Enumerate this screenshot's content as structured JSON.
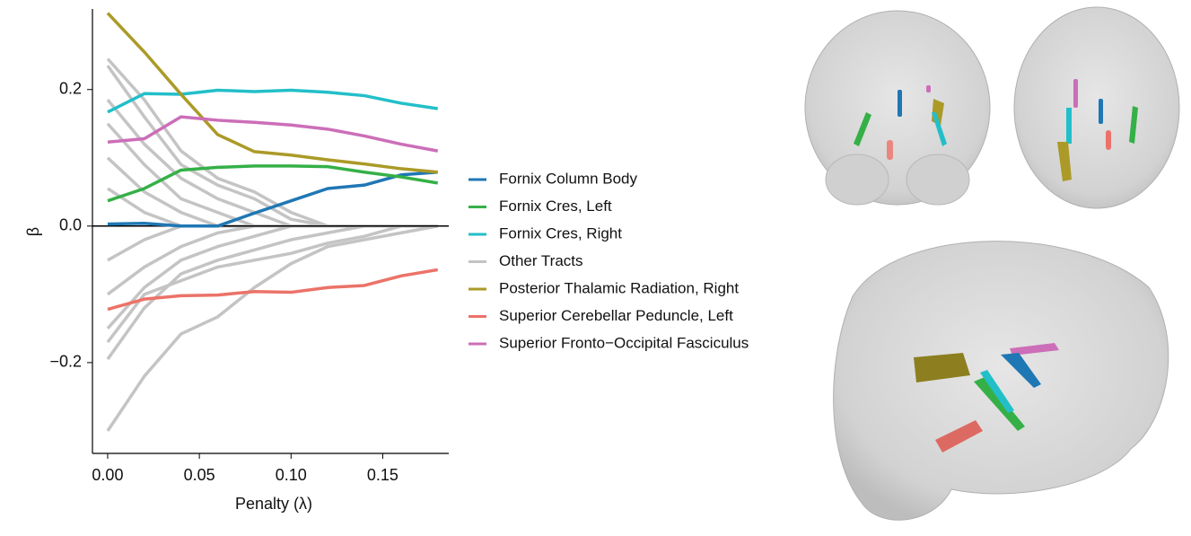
{
  "chart_data": {
    "type": "line",
    "xlabel": "Penalty (λ)",
    "ylabel": "β",
    "x": [
      0,
      0.02,
      0.04,
      0.06,
      0.08,
      0.1,
      0.12,
      0.14,
      0.16,
      0.18
    ],
    "xlim": [
      -0.0083,
      0.186
    ],
    "ylim": [
      -0.333,
      0.318
    ],
    "xticks": [
      {
        "value": 0,
        "label": "0.00"
      },
      0.05,
      {
        "value": 0.1,
        "label": "0.10"
      },
      0.15
    ],
    "yticks": [
      {
        "value": -0.2,
        "label": "−0.2"
      },
      {
        "value": 0,
        "label": "0.0"
      },
      0.2
    ],
    "hline": 0,
    "series": [
      {
        "name": "Fornix Column Body",
        "color": "#1f77b4",
        "values": [
          0.003,
          0.004,
          0,
          0,
          0.019,
          0.037,
          0.055,
          0.06,
          0.075,
          0.079
        ]
      },
      {
        "name": "Fornix Cres, Left",
        "color": "#35b047",
        "values": [
          0.037,
          0.055,
          0.082,
          0.086,
          0.088,
          0.088,
          0.087,
          0.079,
          0.072,
          0.063
        ]
      },
      {
        "name": "Fornix Cres, Right",
        "color": "#22bfc9",
        "values": [
          0.167,
          0.194,
          0.193,
          0.199,
          0.197,
          0.199,
          0.196,
          0.191,
          0.18,
          0.172
        ]
      },
      {
        "name": "Other Tracts",
        "color": "#c4c4c4",
        "values": [
          0.245,
          0.185,
          0.11,
          0.07,
          0.05,
          0.02,
          0,
          0,
          0,
          0
        ]
      },
      {
        "color": "#c4c4c4",
        "values": [
          0.235,
          0.16,
          0.09,
          0.06,
          0.04,
          0.01,
          0,
          0,
          0,
          0
        ]
      },
      {
        "color": "#c4c4c4",
        "values": [
          0.185,
          0.12,
          0.07,
          0.04,
          0.02,
          0,
          0,
          0,
          0,
          0
        ]
      },
      {
        "color": "#c4c4c4",
        "values": [
          0.15,
          0.09,
          0.04,
          0.02,
          0,
          0,
          0,
          0,
          0,
          0
        ]
      },
      {
        "color": "#c4c4c4",
        "values": [
          0.1,
          0.05,
          0.02,
          0,
          0,
          0,
          0,
          0,
          0,
          0
        ]
      },
      {
        "color": "#c4c4c4",
        "values": [
          0.055,
          0.02,
          0,
          0,
          0,
          0,
          0,
          0,
          0,
          0
        ]
      },
      {
        "color": "#c4c4c4",
        "values": [
          -0.3,
          -0.22,
          -0.158,
          -0.133,
          -0.09,
          -0.055,
          -0.03,
          -0.02,
          -0.01,
          0
        ]
      },
      {
        "color": "#c4c4c4",
        "values": [
          -0.195,
          -0.12,
          -0.07,
          -0.05,
          -0.035,
          -0.02,
          -0.01,
          0,
          0,
          0
        ]
      },
      {
        "color": "#c4c4c4",
        "values": [
          -0.15,
          -0.09,
          -0.05,
          -0.03,
          -0.015,
          0,
          0,
          0,
          0,
          0
        ]
      },
      {
        "color": "#c4c4c4",
        "values": [
          -0.1,
          -0.06,
          -0.03,
          -0.01,
          0,
          0,
          0,
          0,
          0,
          0
        ]
      },
      {
        "color": "#c4c4c4",
        "values": [
          -0.05,
          -0.02,
          0,
          0,
          0,
          0,
          0,
          0,
          0,
          0
        ]
      },
      {
        "color": "#c4c4c4",
        "values": [
          -0.17,
          -0.1,
          -0.08,
          -0.06,
          -0.05,
          -0.04,
          -0.025,
          -0.015,
          0,
          0
        ]
      },
      {
        "name": "Posterior Thalamic Radiation, Right",
        "color": "#ab9a27",
        "values": [
          0.312,
          0.255,
          0.193,
          0.134,
          0.109,
          0.104,
          0.097,
          0.091,
          0.084,
          0.079
        ]
      },
      {
        "name": "Superior Cerebellar Peduncle, Left",
        "color": "#ec7268",
        "values": [
          -0.122,
          -0.107,
          -0.102,
          -0.101,
          -0.096,
          -0.097,
          -0.09,
          -0.087,
          -0.073,
          -0.064
        ]
      },
      {
        "name": "Superior Fronto−Occipital Fasciculus",
        "color": "#cc6eb8",
        "values": [
          0.123,
          0.128,
          0.16,
          0.155,
          0.152,
          0.148,
          0.142,
          0.132,
          0.12,
          0.11
        ]
      }
    ]
  }
}
